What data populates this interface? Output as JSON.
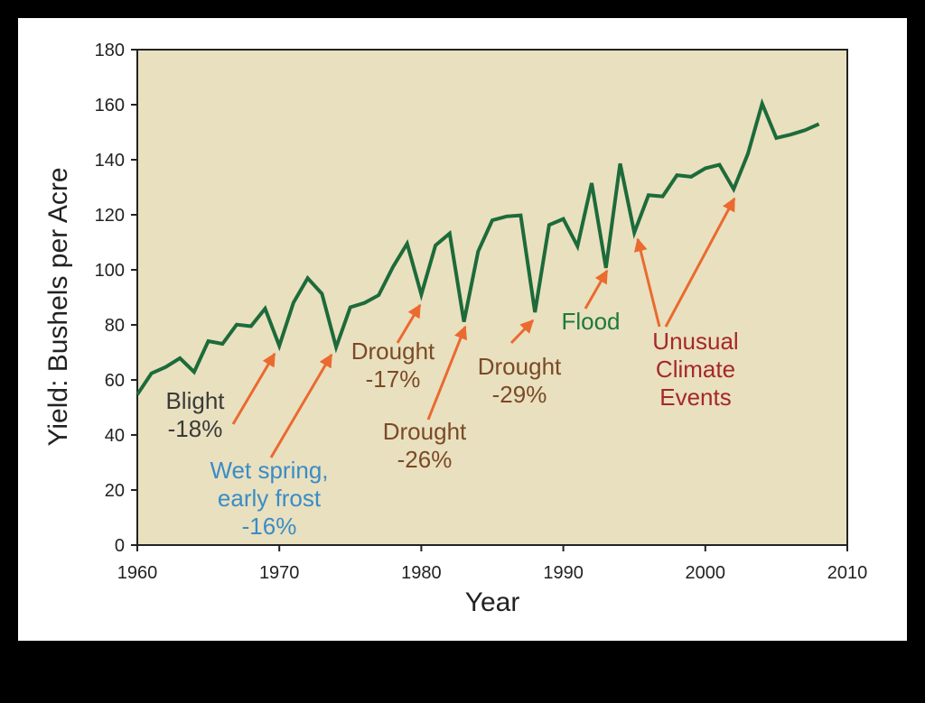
{
  "chart_data": {
    "type": "line",
    "xlabel": "Year",
    "ylabel": "Yield: Bushels per Acre",
    "xlim": [
      1960,
      2010
    ],
    "ylim": [
      0,
      180
    ],
    "xticks": [
      "1960",
      "1970",
      "1980",
      "1990",
      "2000",
      "2010"
    ],
    "yticks": [
      "0",
      "20",
      "40",
      "60",
      "80",
      "100",
      "120",
      "140",
      "160",
      "180"
    ],
    "grid": false,
    "colors": {
      "line": "#1d6b3a",
      "plot_bg": "#e9e0bf",
      "arrow": "#ea6a30"
    },
    "x": [
      1960,
      1961,
      1962,
      1963,
      1964,
      1965,
      1966,
      1967,
      1968,
      1969,
      1970,
      1971,
      1972,
      1973,
      1974,
      1975,
      1976,
      1977,
      1978,
      1979,
      1980,
      1981,
      1982,
      1983,
      1984,
      1985,
      1986,
      1987,
      1988,
      1989,
      1990,
      1991,
      1992,
      1993,
      1994,
      1995,
      1996,
      1997,
      1998,
      1999,
      2000,
      2001,
      2002,
      2003,
      2004,
      2005,
      2006,
      2007,
      2008
    ],
    "y": [
      54.7,
      62.4,
      64.7,
      67.9,
      62.9,
      74.1,
      73.1,
      80.1,
      79.5,
      85.9,
      72.4,
      88.1,
      97.0,
      91.3,
      71.9,
      86.4,
      88.0,
      90.8,
      101.0,
      109.5,
      91.0,
      108.9,
      113.2,
      81.1,
      106.7,
      118.0,
      119.4,
      119.8,
      84.6,
      116.3,
      118.5,
      108.6,
      131.5,
      100.7,
      138.6,
      113.5,
      127.1,
      126.7,
      134.4,
      133.8,
      136.9,
      138.2,
      129.3,
      142.2,
      160.4,
      147.9,
      149.1,
      150.7,
      153.0
    ],
    "annotations": [
      {
        "lines": [
          "Blight",
          "-18%"
        ],
        "color": "#3a3a3a"
      },
      {
        "lines": [
          "Wet spring,",
          "early frost",
          "-16%"
        ],
        "color": "#3a8cc6"
      },
      {
        "lines": [
          "Drought",
          "-17%"
        ],
        "color": "#7b4a26"
      },
      {
        "lines": [
          "Drought",
          "-26%"
        ],
        "color": "#7b4a26"
      },
      {
        "lines": [
          "Drought",
          "-29%"
        ],
        "color": "#7b4a26"
      },
      {
        "lines": [
          "Flood"
        ],
        "color": "#1d7a3c"
      },
      {
        "lines": [
          "Unusual",
          "Climate",
          "Events"
        ],
        "color": "#a5282a"
      }
    ]
  }
}
